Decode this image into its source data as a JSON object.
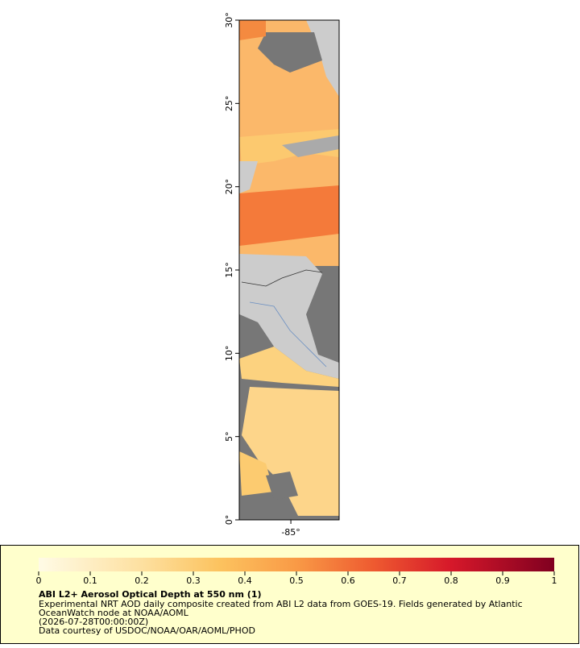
{
  "map": {
    "lat_range": [
      0,
      30
    ],
    "lon_range": [
      -88.1,
      -82.1
    ],
    "lat_ticks": [
      {
        "value": 0,
        "label": "0°"
      },
      {
        "value": 5,
        "label": "5°"
      },
      {
        "value": 10,
        "label": "10°"
      },
      {
        "value": 15,
        "label": "15°"
      },
      {
        "value": 20,
        "label": "20°"
      },
      {
        "value": 25,
        "label": "25°"
      },
      {
        "value": 30,
        "label": "30°"
      }
    ],
    "lon_ticks": [
      {
        "value": -85,
        "label": "-85°"
      }
    ]
  },
  "colorbar": {
    "range": [
      0,
      1
    ],
    "ticks": [
      0,
      0.1,
      0.2,
      0.3,
      0.4,
      0.5,
      0.6,
      0.7,
      0.8,
      0.9,
      1
    ]
  },
  "legend": {
    "title": "ABI L2+ Aerosol Optical Depth at 550 nm (1)",
    "lines": [
      "Experimental NRT AOD daily composite created from ABI L2 data from GOES-19. Fields generated by Atlantic",
      "OceanWatch node at NOAA/AOML",
      "(2026-07-28T00:00:00Z)",
      "Data courtesy of USDOC/NOAA/OAR/AOML/PHOD"
    ]
  }
}
